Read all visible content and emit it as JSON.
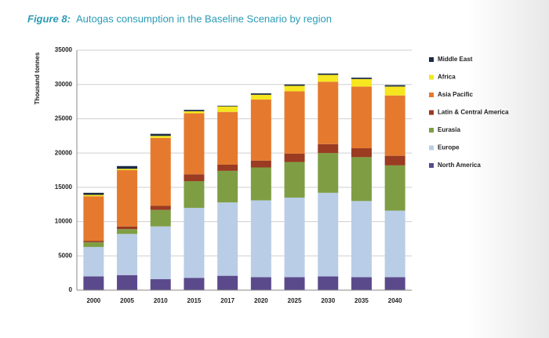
{
  "chart_data": {
    "type": "stacked_bar",
    "figure_label": "Figure 8:",
    "title": "Autogas consumption in the Baseline Scenario by region",
    "y_label": "Thousand tonnes",
    "categories": [
      "2000",
      "2005",
      "2010",
      "2015",
      "2017",
      "2020",
      "2025",
      "2030",
      "2035",
      "2040"
    ],
    "series": [
      {
        "name": "North America",
        "color": "#5b4a8b",
        "values": [
          2000,
          2200,
          1600,
          1800,
          2100,
          1900,
          1900,
          2000,
          1900,
          1900
        ]
      },
      {
        "name": "Europe",
        "color": "#b9cde6",
        "values": [
          4300,
          6000,
          7700,
          10200,
          10700,
          11200,
          11600,
          12200,
          11100,
          9700
        ]
      },
      {
        "name": "Eurasia",
        "color": "#7f9e44",
        "values": [
          700,
          700,
          2400,
          3900,
          4600,
          4800,
          5200,
          5800,
          6400,
          6600
        ]
      },
      {
        "name": "Latin & Central America",
        "color": "#9a3b22",
        "values": [
          200,
          400,
          600,
          1000,
          900,
          1000,
          1200,
          1300,
          1300,
          1400
        ]
      },
      {
        "name": "Asia Pacific",
        "color": "#e57a2f",
        "values": [
          6500,
          8200,
          9900,
          8900,
          7700,
          8900,
          9100,
          9100,
          9000,
          8800
        ]
      },
      {
        "name": "Africa",
        "color": "#f5e620",
        "values": [
          200,
          200,
          300,
          300,
          800,
          700,
          800,
          1000,
          1100,
          1300
        ]
      },
      {
        "name": "Middle East",
        "color": "#1b2a45",
        "values": [
          300,
          400,
          300,
          200,
          100,
          200,
          200,
          200,
          200,
          200
        ]
      }
    ],
    "ylim": [
      0,
      35000
    ],
    "yticks": [
      0,
      5000,
      10000,
      15000,
      20000,
      25000,
      30000,
      35000
    ],
    "grid": true
  }
}
